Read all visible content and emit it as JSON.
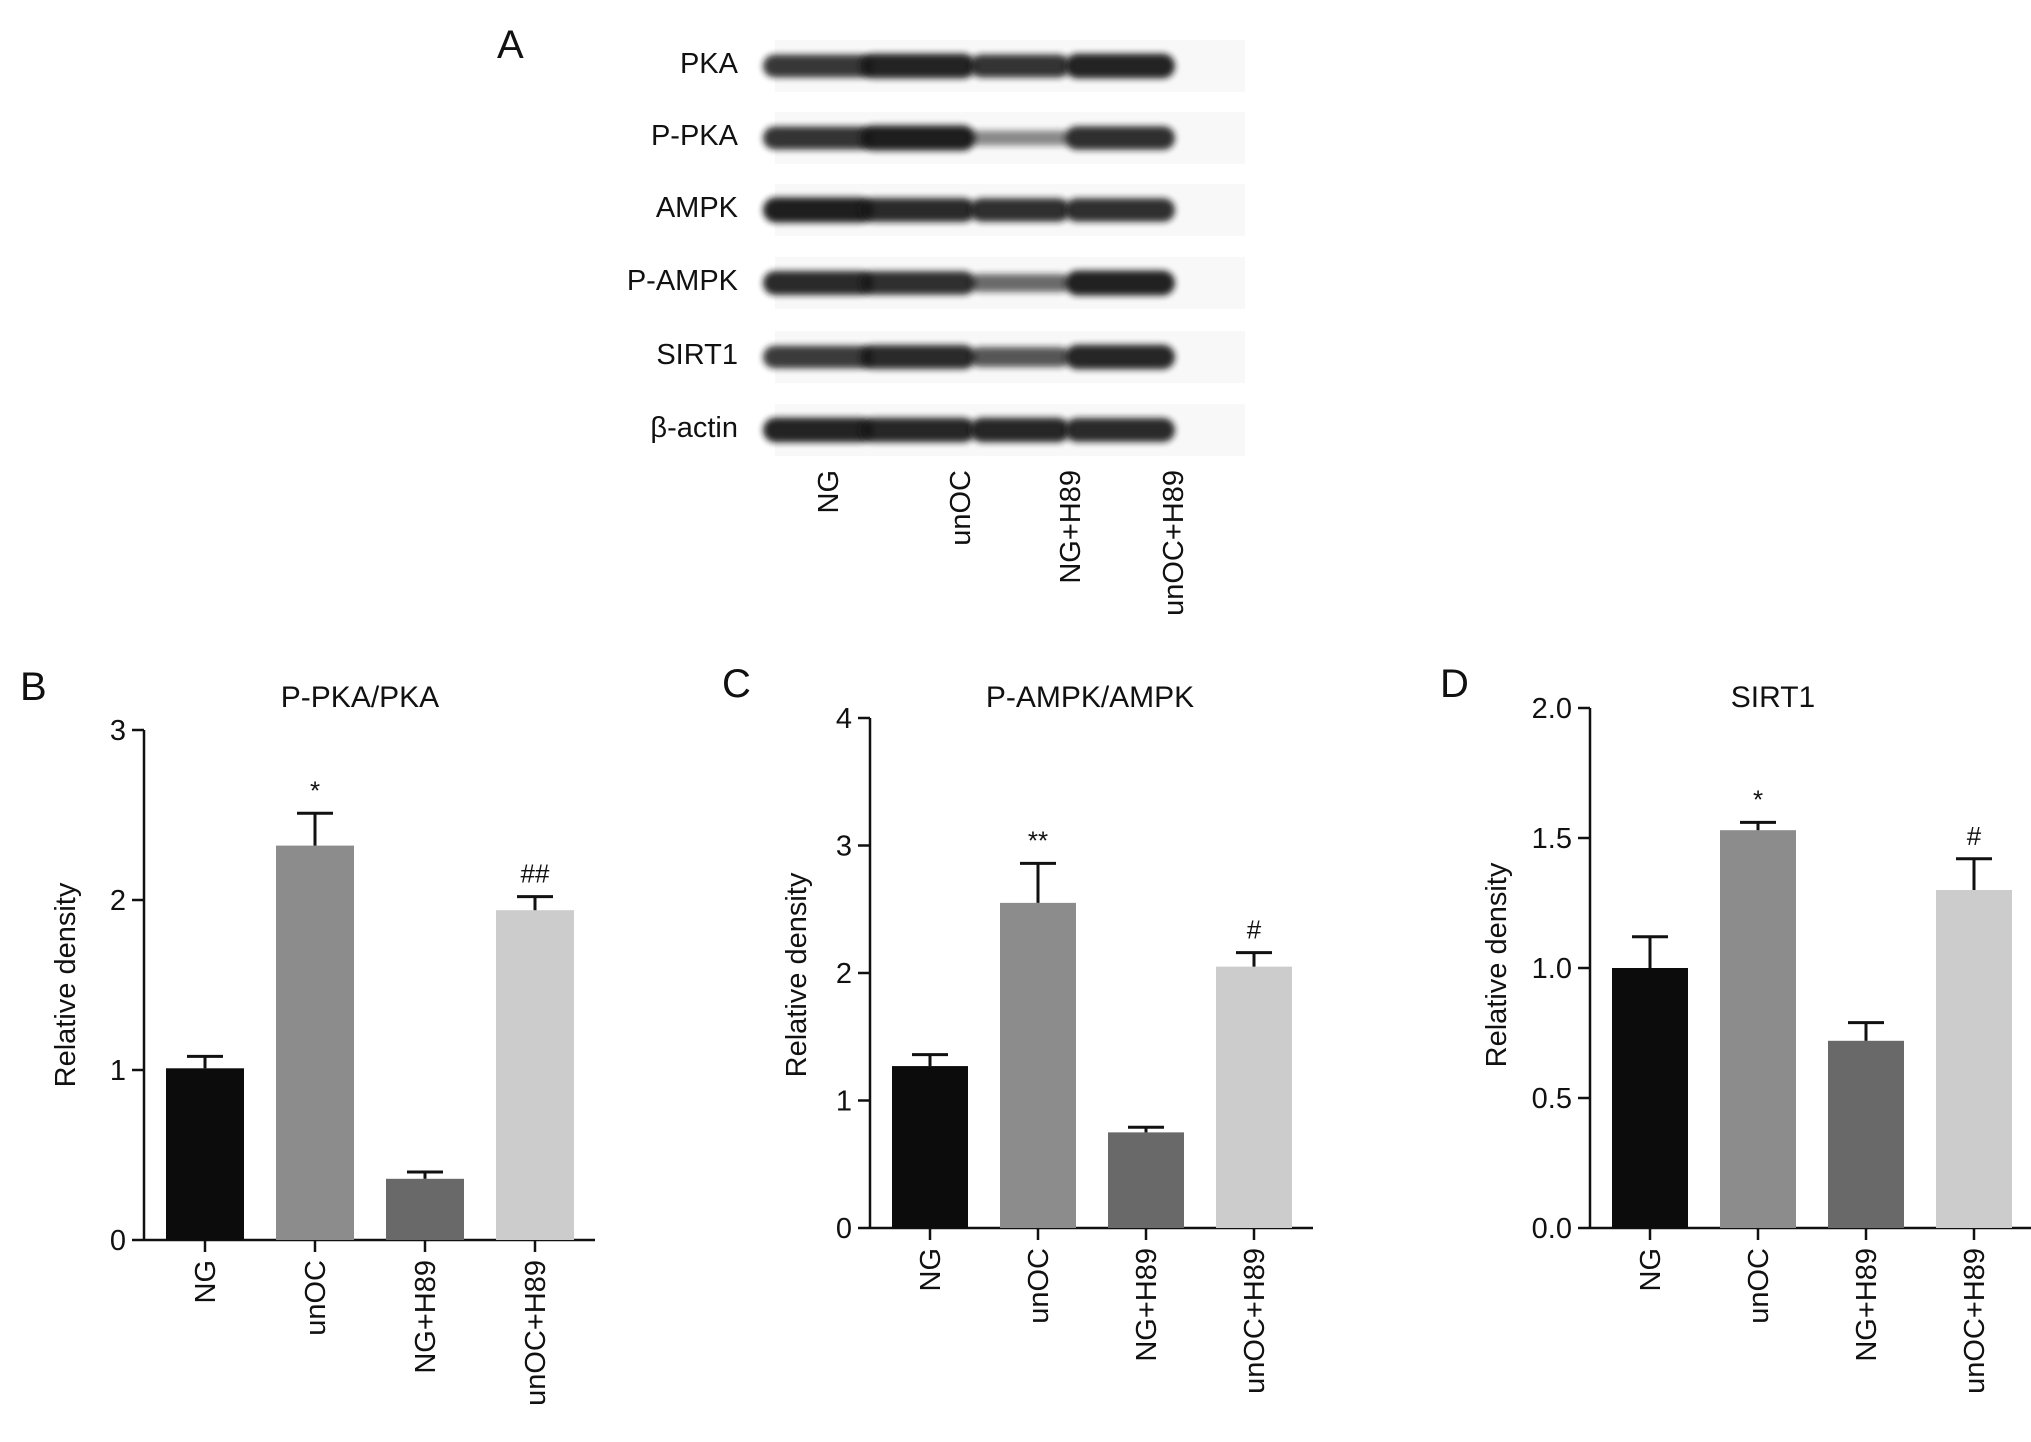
{
  "colors": {
    "NG": "#0c0c0c",
    "unOC": "#8c8c8c",
    "NG+H89": "#696969",
    "unOC+H89": "#cccccc",
    "axis": "#111111",
    "blot_band": "#161616"
  },
  "blot": {
    "panel_letter": "A",
    "proteins": [
      "PKA",
      "P-PKA",
      "AMPK",
      "P-AMPK",
      "SIRT1",
      "β-actin"
    ],
    "lanes": [
      "NG",
      "unOC",
      "NG+H89",
      "unOC+H89"
    ],
    "relative_band_intensity": [
      [
        0.8,
        0.92,
        0.82,
        0.92
      ],
      [
        0.82,
        0.95,
        0.32,
        0.85
      ],
      [
        0.95,
        0.88,
        0.85,
        0.85
      ],
      [
        0.88,
        0.85,
        0.5,
        0.93
      ],
      [
        0.78,
        0.88,
        0.62,
        0.9
      ],
      [
        0.92,
        0.9,
        0.9,
        0.88
      ]
    ]
  },
  "chart_data": [
    {
      "type": "bar",
      "panel_letter": "B",
      "title": "P-PKA/PKA",
      "xlabel": "",
      "ylabel": "Relative density",
      "categories": [
        "NG",
        "unOC",
        "NG+H89",
        "unOC+H89"
      ],
      "values": [
        1.01,
        2.32,
        0.36,
        1.94
      ],
      "errors": [
        0.07,
        0.19,
        0.04,
        0.08
      ],
      "significance": [
        "",
        "*",
        "",
        "##"
      ],
      "ylim": [
        0,
        3
      ],
      "yticks": [
        "0",
        "1",
        "2",
        "3"
      ],
      "ytick_values": [
        0,
        1,
        2,
        3
      ]
    },
    {
      "type": "bar",
      "panel_letter": "C",
      "title": "P-AMPK/AMPK",
      "xlabel": "",
      "ylabel": "Relative density",
      "categories": [
        "NG",
        "unOC",
        "NG+H89",
        "unOC+H89"
      ],
      "values": [
        1.27,
        2.55,
        0.75,
        2.05
      ],
      "errors": [
        0.09,
        0.31,
        0.04,
        0.11
      ],
      "significance": [
        "",
        "**",
        "",
        "#"
      ],
      "ylim": [
        0,
        4
      ],
      "yticks": [
        "0",
        "1",
        "2",
        "3",
        "4"
      ],
      "ytick_values": [
        0,
        1,
        2,
        3,
        4
      ]
    },
    {
      "type": "bar",
      "panel_letter": "D",
      "title": "SIRT1",
      "xlabel": "",
      "ylabel": "Relative density",
      "categories": [
        "NG",
        "unOC",
        "NG+H89",
        "unOC+H89"
      ],
      "values": [
        1.0,
        1.53,
        0.72,
        1.3
      ],
      "errors": [
        0.12,
        0.03,
        0.07,
        0.12
      ],
      "significance": [
        "",
        "*",
        "",
        "#"
      ],
      "ylim": [
        0,
        2
      ],
      "yticks": [
        "0.0",
        "0.5",
        "1.0",
        "1.5",
        "2.0"
      ],
      "ytick_values": [
        0,
        0.5,
        1.0,
        1.5,
        2.0
      ]
    }
  ]
}
